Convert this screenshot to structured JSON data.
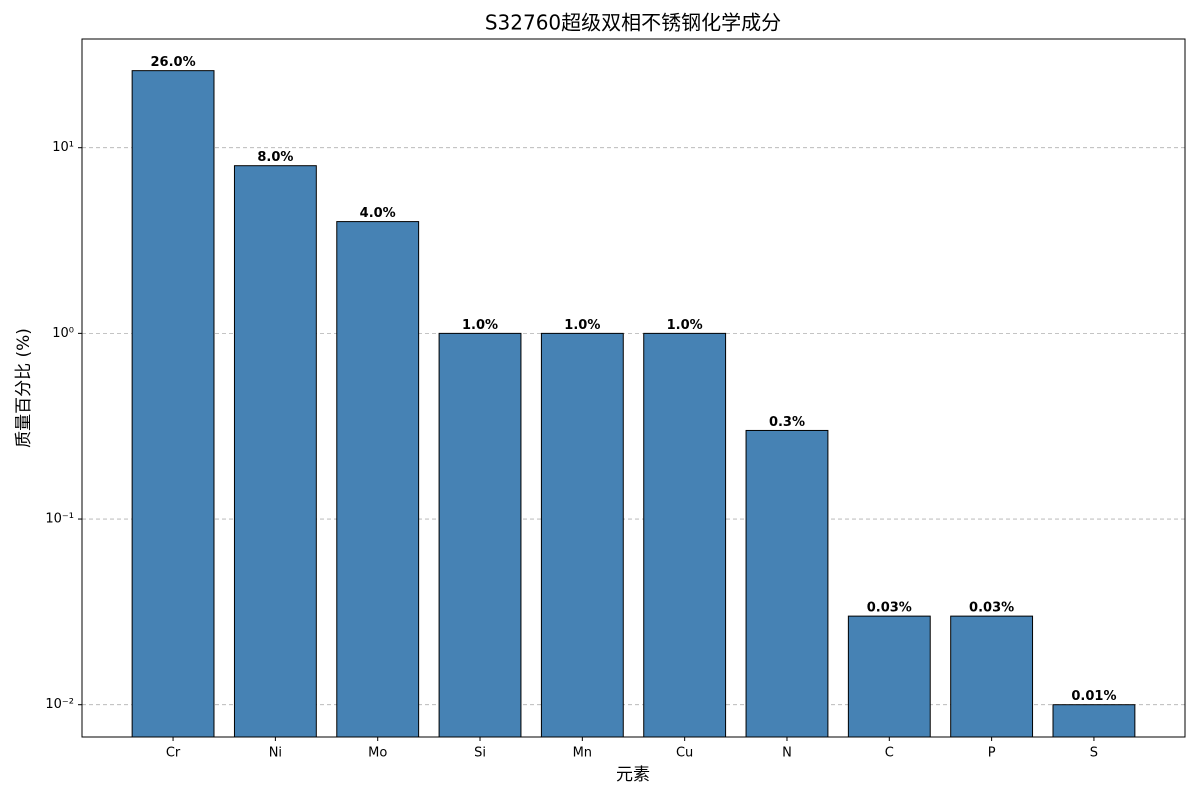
{
  "chart_data": {
    "type": "bar",
    "title": "S32760超级双相不锈钢化学成分",
    "x_label": "元素",
    "y_label": "质量百分比 (%)",
    "categories": [
      "Cr",
      "Ni",
      "Mo",
      "Si",
      "Mn",
      "Cu",
      "N",
      "C",
      "P",
      "S"
    ],
    "values": [
      26,
      8,
      4,
      1,
      1,
      1,
      0.3,
      0.03,
      0.03,
      0.01
    ],
    "value_labels": [
      "26.0%",
      "8.0%",
      "4.0%",
      "1.0%",
      "1.0%",
      "1.0%",
      "0.3%",
      "0.03%",
      "0.03%",
      "0.01%"
    ],
    "color": "#4682b4",
    "edge_color": "#000000",
    "log_scale": true,
    "ylim": [
      0.0067,
      38.5
    ],
    "yticks": [
      {
        "value": 0.01,
        "label": "10⁻²"
      },
      {
        "value": 0.1,
        "label": "10⁻¹"
      },
      {
        "value": 1,
        "label": "10⁰"
      },
      {
        "value": 10,
        "label": "10¹"
      }
    ],
    "grid": true
  }
}
